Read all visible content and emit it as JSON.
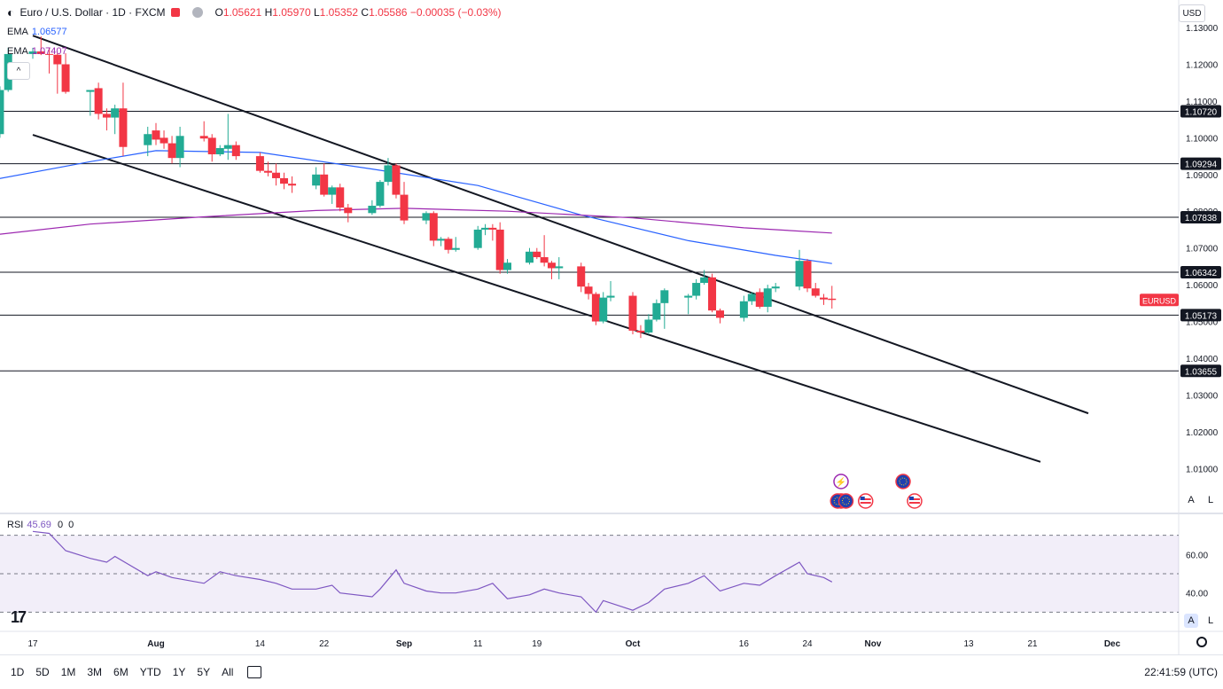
{
  "legend": {
    "symbol": "Euro / U.S. Dollar · 1D · FXCM",
    "open_label": "O",
    "open": "1.05621",
    "high_label": "H",
    "high": "1.05970",
    "low_label": "L",
    "low": "1.05352",
    "close_label": "C",
    "close": "1.05586",
    "change": "−0.00035 (−0.03%)"
  },
  "ema1": {
    "label": "EMA",
    "value": "1.06577",
    "color": "#2962ff"
  },
  "ema2": {
    "label": "EMA",
    "value": "1.07407",
    "color": "#9c27b0"
  },
  "rsi": {
    "label": "RSI",
    "value": "45.69",
    "extra1": "0",
    "extra2": "0",
    "color": "#7e57c2"
  },
  "currency": "USD",
  "timeframes": [
    "1D",
    "5D",
    "1M",
    "3M",
    "6M",
    "YTD",
    "1Y",
    "5Y",
    "All"
  ],
  "clock": "22:41:59 (UTC)",
  "axis_buttons": {
    "auto": "A",
    "log": "L"
  },
  "chart_data": {
    "type": "candlestick",
    "symbol_tag": "EURUSD",
    "current_price": 1.05586,
    "colors": {
      "up": "#22ab94",
      "down": "#f23645",
      "tag": "#f23645"
    },
    "price_axis": {
      "ylim": [
        0.998,
        1.1375
      ],
      "ticks": [
        1.01,
        1.02,
        1.03,
        1.04,
        1.05,
        1.06,
        1.07,
        1.08,
        1.09,
        1.1,
        1.11,
        1.12,
        1.13
      ]
    },
    "x_axis": {
      "labels": [
        "17",
        "Aug",
        "14",
        "22",
        "Sep",
        "11",
        "19",
        "Oct",
        "16",
        "24",
        "Nov",
        "13",
        "21",
        "Dec"
      ],
      "label_dates": [
        "2023-07-17",
        "2023-08-01",
        "2023-08-14",
        "2023-08-22",
        "2023-09-01",
        "2023-09-11",
        "2023-09-19",
        "2023-10-02",
        "2023-10-16",
        "2023-10-24",
        "2023-11-01",
        "2023-11-13",
        "2023-11-21",
        "2023-12-01"
      ]
    },
    "candles": [
      {
        "date": "2023-07-13",
        "o": 1.101,
        "h": 1.114,
        "l": 1.1,
        "c": 1.113
      },
      {
        "date": "2023-07-14",
        "o": 1.113,
        "h": 1.1245,
        "l": 1.1125,
        "c": 1.1228
      },
      {
        "date": "2023-07-17",
        "o": 1.1228,
        "h": 1.1245,
        "l": 1.1215,
        "c": 1.1235
      },
      {
        "date": "2023-07-18",
        "o": 1.1235,
        "h": 1.1276,
        "l": 1.1225,
        "c": 1.1228
      },
      {
        "date": "2023-07-19",
        "o": 1.1228,
        "h": 1.1245,
        "l": 1.1175,
        "c": 1.1226
      },
      {
        "date": "2023-07-20",
        "o": 1.1226,
        "h": 1.123,
        "l": 1.112,
        "c": 1.12
      },
      {
        "date": "2023-07-21",
        "o": 1.12,
        "h": 1.123,
        "l": 1.112,
        "c": 1.1125
      },
      {
        "date": "2023-07-24",
        "o": 1.1125,
        "h": 1.113,
        "l": 1.106,
        "c": 1.113
      },
      {
        "date": "2023-07-25",
        "o": 1.1135,
        "h": 1.115,
        "l": 1.105,
        "c": 1.1065
      },
      {
        "date": "2023-07-26",
        "o": 1.1065,
        "h": 1.108,
        "l": 1.102,
        "c": 1.1055
      },
      {
        "date": "2023-07-27",
        "o": 1.1055,
        "h": 1.109,
        "l": 1.101,
        "c": 1.108
      },
      {
        "date": "2023-07-28",
        "o": 1.108,
        "h": 1.115,
        "l": 1.095,
        "c": 1.0975
      },
      {
        "date": "2023-07-31",
        "o": 1.098,
        "h": 1.103,
        "l": 1.095,
        "c": 1.101
      },
      {
        "date": "2023-08-01",
        "o": 1.102,
        "h": 1.104,
        "l": 1.098,
        "c": 1.0995
      },
      {
        "date": "2023-08-02",
        "o": 1.1,
        "h": 1.102,
        "l": 1.097,
        "c": 1.0985
      },
      {
        "date": "2023-08-03",
        "o": 1.0985,
        "h": 1.1005,
        "l": 1.093,
        "c": 1.0945
      },
      {
        "date": "2023-08-04",
        "o": 1.0945,
        "h": 1.103,
        "l": 1.092,
        "c": 1.1005
      },
      {
        "date": "2023-08-07",
        "o": 1.1005,
        "h": 1.1045,
        "l": 1.099,
        "c": 1.0998
      },
      {
        "date": "2023-08-08",
        "o": 1.1,
        "h": 1.101,
        "l": 1.0935,
        "c": 1.0955
      },
      {
        "date": "2023-08-09",
        "o": 1.0955,
        "h": 1.098,
        "l": 1.095,
        "c": 1.0972
      },
      {
        "date": "2023-08-10",
        "o": 1.097,
        "h": 1.1065,
        "l": 1.094,
        "c": 1.098
      },
      {
        "date": "2023-08-11",
        "o": 1.098,
        "h": 1.099,
        "l": 1.094,
        "c": 1.095
      },
      {
        "date": "2023-08-14",
        "o": 1.095,
        "h": 1.096,
        "l": 1.0905,
        "c": 1.091
      },
      {
        "date": "2023-08-15",
        "o": 1.091,
        "h": 1.0935,
        "l": 1.0895,
        "c": 1.0905
      },
      {
        "date": "2023-08-16",
        "o": 1.0905,
        "h": 1.093,
        "l": 1.087,
        "c": 1.089
      },
      {
        "date": "2023-08-17",
        "o": 1.089,
        "h": 1.0905,
        "l": 1.086,
        "c": 1.0875
      },
      {
        "date": "2023-08-18",
        "o": 1.0875,
        "h": 1.0895,
        "l": 1.085,
        "c": 1.087
      },
      {
        "date": "2023-08-21",
        "o": 1.087,
        "h": 1.092,
        "l": 1.086,
        "c": 1.09
      },
      {
        "date": "2023-08-22",
        "o": 1.09,
        "h": 1.093,
        "l": 1.084,
        "c": 1.0845
      },
      {
        "date": "2023-08-23",
        "o": 1.0845,
        "h": 1.087,
        "l": 1.082,
        "c": 1.0865
      },
      {
        "date": "2023-08-24",
        "o": 1.0865,
        "h": 1.0875,
        "l": 1.08,
        "c": 1.081
      },
      {
        "date": "2023-08-25",
        "o": 1.081,
        "h": 1.082,
        "l": 1.077,
        "c": 1.0795
      },
      {
        "date": "2023-08-28",
        "o": 1.0795,
        "h": 1.083,
        "l": 1.079,
        "c": 1.0815
      },
      {
        "date": "2023-08-29",
        "o": 1.0815,
        "h": 1.0885,
        "l": 1.081,
        "c": 1.088
      },
      {
        "date": "2023-08-30",
        "o": 1.088,
        "h": 1.0945,
        "l": 1.087,
        "c": 1.0925
      },
      {
        "date": "2023-08-31",
        "o": 1.0925,
        "h": 1.093,
        "l": 1.0835,
        "c": 1.0845
      },
      {
        "date": "2023-09-01",
        "o": 1.0845,
        "h": 1.088,
        "l": 1.0765,
        "c": 1.0775
      },
      {
        "date": "2023-09-04",
        "o": 1.0775,
        "h": 1.08,
        "l": 1.0765,
        "c": 1.0795
      },
      {
        "date": "2023-09-05",
        "o": 1.0795,
        "h": 1.08,
        "l": 1.0705,
        "c": 1.072
      },
      {
        "date": "2023-09-06",
        "o": 1.072,
        "h": 1.073,
        "l": 1.0705,
        "c": 1.0725
      },
      {
        "date": "2023-09-07",
        "o": 1.0725,
        "h": 1.073,
        "l": 1.0685,
        "c": 1.0695
      },
      {
        "date": "2023-09-08",
        "o": 1.0695,
        "h": 1.073,
        "l": 1.069,
        "c": 1.07
      },
      {
        "date": "2023-09-11",
        "o": 1.07,
        "h": 1.076,
        "l": 1.0695,
        "c": 1.075
      },
      {
        "date": "2023-09-12",
        "o": 1.075,
        "h": 1.0765,
        "l": 1.0735,
        "c": 1.0755
      },
      {
        "date": "2023-09-13",
        "o": 1.0755,
        "h": 1.0765,
        "l": 1.072,
        "c": 1.075
      },
      {
        "date": "2023-09-14",
        "o": 1.075,
        "h": 1.077,
        "l": 1.063,
        "c": 1.064
      },
      {
        "date": "2023-09-15",
        "o": 1.064,
        "h": 1.067,
        "l": 1.063,
        "c": 1.066
      },
      {
        "date": "2023-09-18",
        "o": 1.066,
        "h": 1.07,
        "l": 1.0655,
        "c": 1.069
      },
      {
        "date": "2023-09-19",
        "o": 1.069,
        "h": 1.07,
        "l": 1.067,
        "c": 1.0675
      },
      {
        "date": "2023-09-20",
        "o": 1.0675,
        "h": 1.0735,
        "l": 1.065,
        "c": 1.066
      },
      {
        "date": "2023-09-21",
        "o": 1.066,
        "h": 1.0665,
        "l": 1.0615,
        "c": 1.0645
      },
      {
        "date": "2023-09-22",
        "o": 1.0645,
        "h": 1.0675,
        "l": 1.0615,
        "c": 1.065
      },
      {
        "date": "2023-09-25",
        "o": 1.065,
        "h": 1.066,
        "l": 1.058,
        "c": 1.0595
      },
      {
        "date": "2023-09-26",
        "o": 1.0595,
        "h": 1.0605,
        "l": 1.056,
        "c": 1.0575
      },
      {
        "date": "2023-09-27",
        "o": 1.0575,
        "h": 1.058,
        "l": 1.049,
        "c": 1.05
      },
      {
        "date": "2023-09-28",
        "o": 1.05,
        "h": 1.058,
        "l": 1.0495,
        "c": 1.0565
      },
      {
        "date": "2023-09-29",
        "o": 1.0565,
        "h": 1.061,
        "l": 1.0555,
        "c": 1.057
      },
      {
        "date": "2023-10-02",
        "o": 1.057,
        "h": 1.058,
        "l": 1.0465,
        "c": 1.0475
      },
      {
        "date": "2023-10-03",
        "o": 1.0475,
        "h": 1.049,
        "l": 1.0455,
        "c": 1.047
      },
      {
        "date": "2023-10-04",
        "o": 1.047,
        "h": 1.052,
        "l": 1.0465,
        "c": 1.0505
      },
      {
        "date": "2023-10-05",
        "o": 1.0505,
        "h": 1.056,
        "l": 1.05,
        "c": 1.055
      },
      {
        "date": "2023-10-06",
        "o": 1.055,
        "h": 1.059,
        "l": 1.048,
        "c": 1.0585
      },
      {
        "date": "2023-10-09",
        "o": 1.0565,
        "h": 1.0575,
        "l": 1.052,
        "c": 1.057
      },
      {
        "date": "2023-10-10",
        "o": 1.057,
        "h": 1.0615,
        "l": 1.056,
        "c": 1.0605
      },
      {
        "date": "2023-10-11",
        "o": 1.0605,
        "h": 1.064,
        "l": 1.06,
        "c": 1.062
      },
      {
        "date": "2023-10-12",
        "o": 1.062,
        "h": 1.063,
        "l": 1.0525,
        "c": 1.053
      },
      {
        "date": "2023-10-13",
        "o": 1.053,
        "h": 1.0535,
        "l": 1.0495,
        "c": 1.051
      },
      {
        "date": "2023-10-16",
        "o": 1.051,
        "h": 1.057,
        "l": 1.05,
        "c": 1.0555
      },
      {
        "date": "2023-10-17",
        "o": 1.0555,
        "h": 1.058,
        "l": 1.0545,
        "c": 1.0575
      },
      {
        "date": "2023-10-18",
        "o": 1.058,
        "h": 1.059,
        "l": 1.0535,
        "c": 1.054
      },
      {
        "date": "2023-10-19",
        "o": 1.054,
        "h": 1.06,
        "l": 1.0525,
        "c": 1.059
      },
      {
        "date": "2023-10-20",
        "o": 1.059,
        "h": 1.0605,
        "l": 1.058,
        "c": 1.0595
      },
      {
        "date": "2023-10-23",
        "o": 1.0595,
        "h": 1.0695,
        "l": 1.0585,
        "c": 1.0665
      },
      {
        "date": "2023-10-24",
        "o": 1.0665,
        "h": 1.067,
        "l": 1.058,
        "c": 1.059
      },
      {
        "date": "2023-10-25",
        "o": 1.059,
        "h": 1.0605,
        "l": 1.0565,
        "c": 1.057
      },
      {
        "date": "2023-10-26",
        "o": 1.0565,
        "h": 1.0575,
        "l": 1.0545,
        "c": 1.056
      },
      {
        "date": "2023-10-27",
        "o": 1.05621,
        "h": 1.0597,
        "l": 1.05352,
        "c": 1.05586
      }
    ],
    "ema_fast": {
      "name": "EMA",
      "points": [
        [
          "2023-07-12",
          1.0885
        ],
        [
          "2023-07-24",
          1.0935
        ],
        [
          "2023-08-01",
          1.0965
        ],
        [
          "2023-08-14",
          1.096
        ],
        [
          "2023-08-28",
          1.0915
        ],
        [
          "2023-09-11",
          1.087
        ],
        [
          "2023-09-25",
          1.079
        ],
        [
          "2023-10-09",
          1.072
        ],
        [
          "2023-10-20",
          1.068
        ],
        [
          "2023-10-27",
          1.06577
        ]
      ]
    },
    "ema_slow": {
      "name": "EMA",
      "points": [
        [
          "2023-07-12",
          1.0735
        ],
        [
          "2023-07-24",
          1.0765
        ],
        [
          "2023-08-07",
          1.0785
        ],
        [
          "2023-08-21",
          1.0802
        ],
        [
          "2023-09-01",
          1.0808
        ],
        [
          "2023-09-15",
          1.08
        ],
        [
          "2023-10-02",
          1.0782
        ],
        [
          "2023-10-16",
          1.0755
        ],
        [
          "2023-10-27",
          1.07407
        ]
      ]
    },
    "horizontal_levels": [
      1.1072,
      1.09294,
      1.07838,
      1.06342,
      1.05173,
      1.03655
    ],
    "level_labels": [
      "1.10720",
      "1.09294",
      "1.07838",
      "1.06342",
      "1.05173",
      "1.03655"
    ],
    "trendlines": [
      {
        "from": [
          "2023-07-17",
          1.1278
        ],
        "to": [
          "2023-11-28",
          1.025
        ]
      },
      {
        "from": [
          "2023-07-17",
          1.1008
        ],
        "to": [
          "2023-11-22",
          1.0118
        ]
      }
    ],
    "events": [
      {
        "date": "2023-10-24",
        "row": 1,
        "icon": "lightning"
      },
      {
        "date": "2023-11-02",
        "row": 1,
        "icon": "eu-flag"
      },
      {
        "date": "2023-10-24",
        "row": 2,
        "icon": "us-flag"
      },
      {
        "date": "2023-10-25",
        "row": 2,
        "icon": "eu-flag"
      },
      {
        "date": "2023-10-26",
        "row": 2,
        "icon": "eu-flag"
      },
      {
        "date": "2023-10-27",
        "row": 2,
        "icon": "us-flag"
      },
      {
        "date": "2023-11-02",
        "row": 2,
        "icon": "us-flag"
      }
    ],
    "rsi_panel": {
      "ylim": [
        20,
        80
      ],
      "ticks": [
        40.0,
        60.0
      ],
      "band": [
        30,
        70
      ],
      "points": [
        [
          "2023-07-17",
          72
        ],
        [
          "2023-07-19",
          71
        ],
        [
          "2023-07-21",
          62
        ],
        [
          "2023-07-24",
          58
        ],
        [
          "2023-07-26",
          56
        ],
        [
          "2023-07-27",
          59
        ],
        [
          "2023-07-31",
          49
        ],
        [
          "2023-08-01",
          51
        ],
        [
          "2023-08-03",
          48
        ],
        [
          "2023-08-07",
          45
        ],
        [
          "2023-08-09",
          51
        ],
        [
          "2023-08-11",
          49
        ],
        [
          "2023-08-14",
          47
        ],
        [
          "2023-08-16",
          45
        ],
        [
          "2023-08-18",
          42
        ],
        [
          "2023-08-21",
          42
        ],
        [
          "2023-08-23",
          44
        ],
        [
          "2023-08-24",
          40
        ],
        [
          "2023-08-28",
          38
        ],
        [
          "2023-08-29",
          42
        ],
        [
          "2023-08-31",
          52
        ],
        [
          "2023-09-01",
          45
        ],
        [
          "2023-09-04",
          41
        ],
        [
          "2023-09-06",
          40
        ],
        [
          "2023-09-08",
          40
        ],
        [
          "2023-09-11",
          42
        ],
        [
          "2023-09-13",
          45
        ],
        [
          "2023-09-15",
          37
        ],
        [
          "2023-09-18",
          39
        ],
        [
          "2023-09-20",
          42
        ],
        [
          "2023-09-22",
          40
        ],
        [
          "2023-09-25",
          38
        ],
        [
          "2023-09-27",
          30
        ],
        [
          "2023-09-28",
          36
        ],
        [
          "2023-10-02",
          31
        ],
        [
          "2023-10-04",
          35
        ],
        [
          "2023-10-06",
          42
        ],
        [
          "2023-10-09",
          45
        ],
        [
          "2023-10-11",
          49
        ],
        [
          "2023-10-13",
          41
        ],
        [
          "2023-10-16",
          45
        ],
        [
          "2023-10-18",
          44
        ],
        [
          "2023-10-20",
          49
        ],
        [
          "2023-10-23",
          56
        ],
        [
          "2023-10-24",
          50
        ],
        [
          "2023-10-26",
          48
        ],
        [
          "2023-10-27",
          45.69
        ]
      ]
    }
  }
}
